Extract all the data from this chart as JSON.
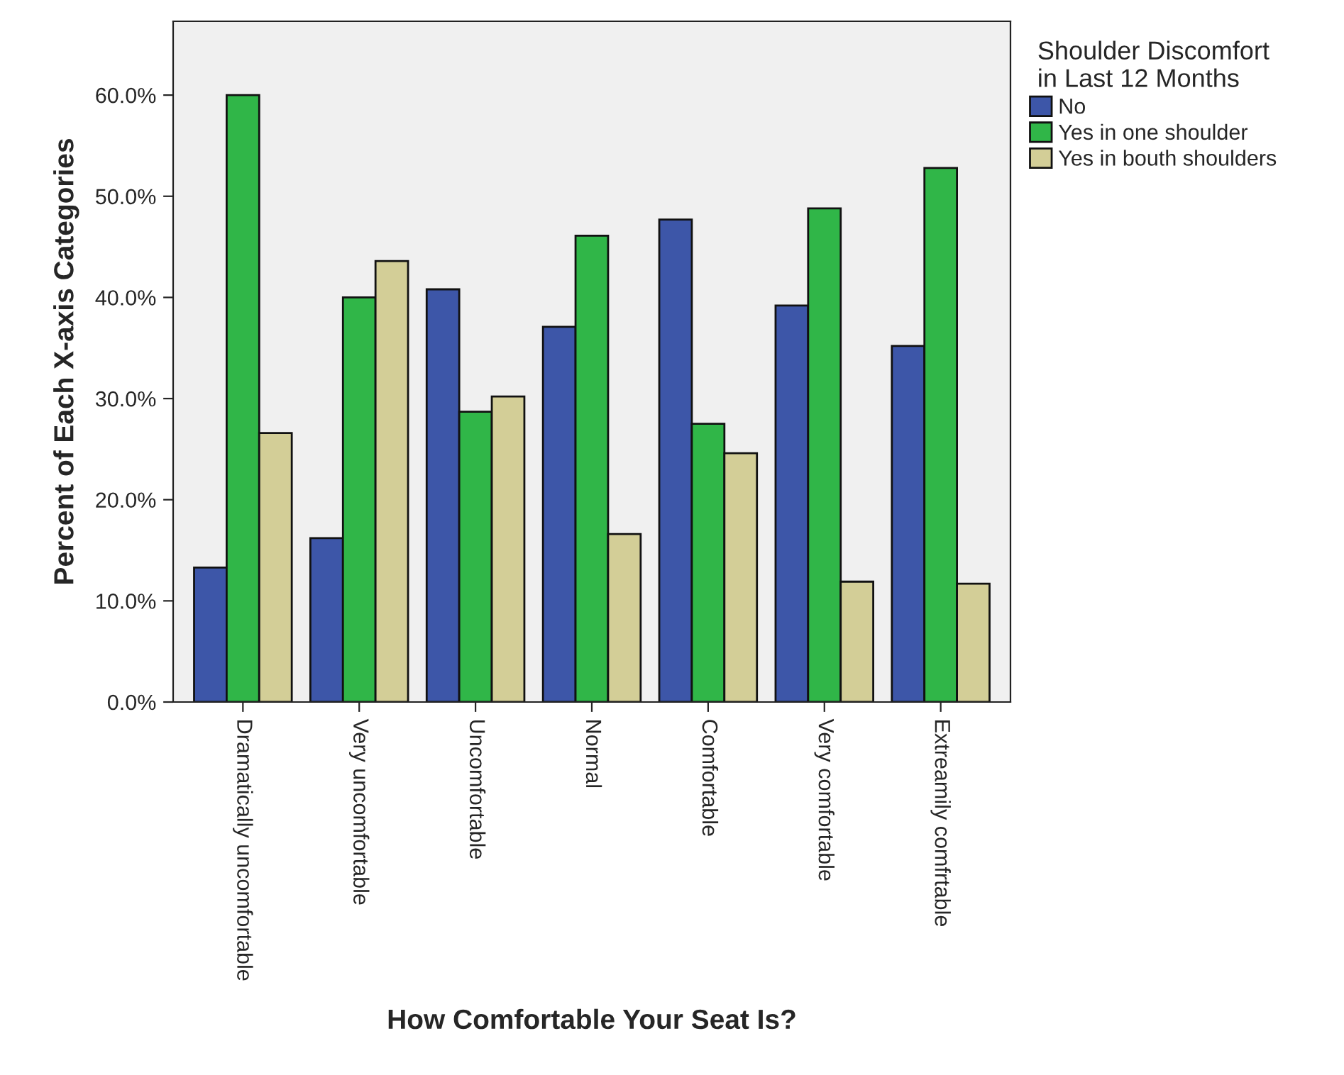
{
  "chart_data": {
    "type": "bar",
    "xlabel": "How Comfortable Your Seat Is?",
    "ylabel": "Percent of Each X-axis Categories",
    "legend_title": "Shoulder Discomfort\nin Last 12 Months",
    "categories": [
      "Dramatically uncomfortable",
      "Very uncomfortable",
      "Uncomfortable",
      "Normal",
      "Comfortable",
      "Very comfortable",
      "Extreamily comfrtable"
    ],
    "series": [
      {
        "name": "No",
        "color": "#3d56a8",
        "values": [
          13.3,
          16.2,
          40.8,
          37.1,
          47.7,
          39.2,
          35.2
        ]
      },
      {
        "name": "Yes in one shoulder",
        "color": "#30b648",
        "values": [
          60.0,
          40.0,
          28.7,
          46.1,
          27.5,
          48.8,
          52.8
        ]
      },
      {
        "name": "Yes in bouth shoulders",
        "color": "#d3ce97",
        "values": [
          26.6,
          43.6,
          30.2,
          16.6,
          24.6,
          11.9,
          11.7
        ]
      }
    ],
    "ylim": [
      0,
      67.3
    ],
    "yticks": [
      {
        "value": 0,
        "label": "0.0%"
      },
      {
        "value": 10,
        "label": "10.0%"
      },
      {
        "value": 20,
        "label": "20.0%"
      },
      {
        "value": 30,
        "label": "30.0%"
      },
      {
        "value": 40,
        "label": "40.0%"
      },
      {
        "value": 50,
        "label": "50.0%"
      },
      {
        "value": 60,
        "label": "60.0%"
      }
    ],
    "legend": "top right",
    "grid": false
  }
}
